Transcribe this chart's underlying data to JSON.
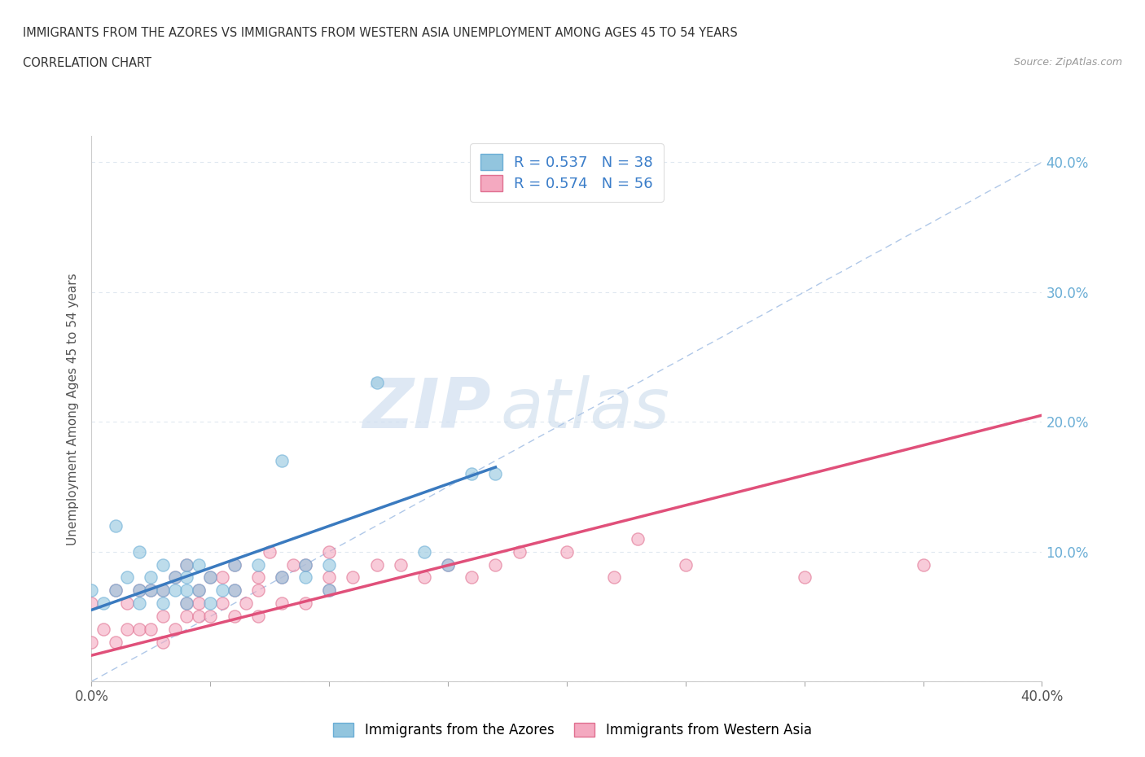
{
  "title_line1": "IMMIGRANTS FROM THE AZORES VS IMMIGRANTS FROM WESTERN ASIA UNEMPLOYMENT AMONG AGES 45 TO 54 YEARS",
  "title_line2": "CORRELATION CHART",
  "source_text": "Source: ZipAtlas.com",
  "ylabel": "Unemployment Among Ages 45 to 54 years",
  "xlim": [
    0.0,
    0.4
  ],
  "ylim": [
    0.0,
    0.42
  ],
  "xticks": [
    0.0,
    0.05,
    0.1,
    0.15,
    0.2,
    0.25,
    0.3,
    0.35,
    0.4
  ],
  "yticks": [
    0.0,
    0.1,
    0.2,
    0.3,
    0.4
  ],
  "azores_color": "#92c5de",
  "azores_edge_color": "#6baed6",
  "western_asia_color": "#f4a9c0",
  "western_asia_edge_color": "#e07090",
  "trendline_color_azores": "#3a7abf",
  "trendline_color_western_asia": "#e0507a",
  "dashed_line_color": "#b0c8e8",
  "R_azores": 0.537,
  "N_azores": 38,
  "R_western_asia": 0.574,
  "N_western_asia": 56,
  "legend_label_azores": "Immigrants from the Azores",
  "legend_label_western_asia": "Immigrants from Western Asia",
  "watermark_zip": "ZIP",
  "watermark_atlas": "atlas",
  "background_color": "#ffffff",
  "right_tick_color": "#6baed6",
  "grid_color": "#e0e8f0",
  "azores_x": [
    0.0,
    0.005,
    0.01,
    0.01,
    0.015,
    0.02,
    0.02,
    0.02,
    0.025,
    0.025,
    0.03,
    0.03,
    0.03,
    0.035,
    0.035,
    0.04,
    0.04,
    0.04,
    0.04,
    0.045,
    0.045,
    0.05,
    0.05,
    0.055,
    0.06,
    0.06,
    0.07,
    0.08,
    0.08,
    0.09,
    0.09,
    0.1,
    0.1,
    0.12,
    0.14,
    0.15,
    0.16,
    0.17
  ],
  "azores_y": [
    0.07,
    0.06,
    0.07,
    0.12,
    0.08,
    0.06,
    0.07,
    0.1,
    0.07,
    0.08,
    0.06,
    0.07,
    0.09,
    0.07,
    0.08,
    0.06,
    0.07,
    0.08,
    0.09,
    0.07,
    0.09,
    0.06,
    0.08,
    0.07,
    0.07,
    0.09,
    0.09,
    0.08,
    0.17,
    0.08,
    0.09,
    0.07,
    0.09,
    0.23,
    0.1,
    0.09,
    0.16,
    0.16
  ],
  "western_asia_x": [
    0.0,
    0.0,
    0.005,
    0.01,
    0.01,
    0.015,
    0.015,
    0.02,
    0.02,
    0.025,
    0.025,
    0.03,
    0.03,
    0.03,
    0.035,
    0.035,
    0.04,
    0.04,
    0.04,
    0.045,
    0.045,
    0.045,
    0.05,
    0.05,
    0.055,
    0.055,
    0.06,
    0.06,
    0.06,
    0.065,
    0.07,
    0.07,
    0.07,
    0.075,
    0.08,
    0.08,
    0.085,
    0.09,
    0.09,
    0.1,
    0.1,
    0.1,
    0.11,
    0.12,
    0.13,
    0.14,
    0.15,
    0.16,
    0.17,
    0.18,
    0.2,
    0.22,
    0.23,
    0.25,
    0.3,
    0.35
  ],
  "western_asia_y": [
    0.03,
    0.06,
    0.04,
    0.03,
    0.07,
    0.04,
    0.06,
    0.04,
    0.07,
    0.04,
    0.07,
    0.03,
    0.05,
    0.07,
    0.04,
    0.08,
    0.05,
    0.06,
    0.09,
    0.05,
    0.06,
    0.07,
    0.05,
    0.08,
    0.06,
    0.08,
    0.05,
    0.07,
    0.09,
    0.06,
    0.05,
    0.07,
    0.08,
    0.1,
    0.06,
    0.08,
    0.09,
    0.06,
    0.09,
    0.07,
    0.08,
    0.1,
    0.08,
    0.09,
    0.09,
    0.08,
    0.09,
    0.08,
    0.09,
    0.1,
    0.1,
    0.08,
    0.11,
    0.09,
    0.08,
    0.09
  ],
  "azores_trendline_x": [
    0.0,
    0.17
  ],
  "azores_trendline_y_start": 0.055,
  "azores_trendline_y_end": 0.165,
  "western_asia_trendline_x": [
    0.0,
    0.4
  ],
  "western_asia_trendline_y_start": 0.02,
  "western_asia_trendline_y_end": 0.205
}
